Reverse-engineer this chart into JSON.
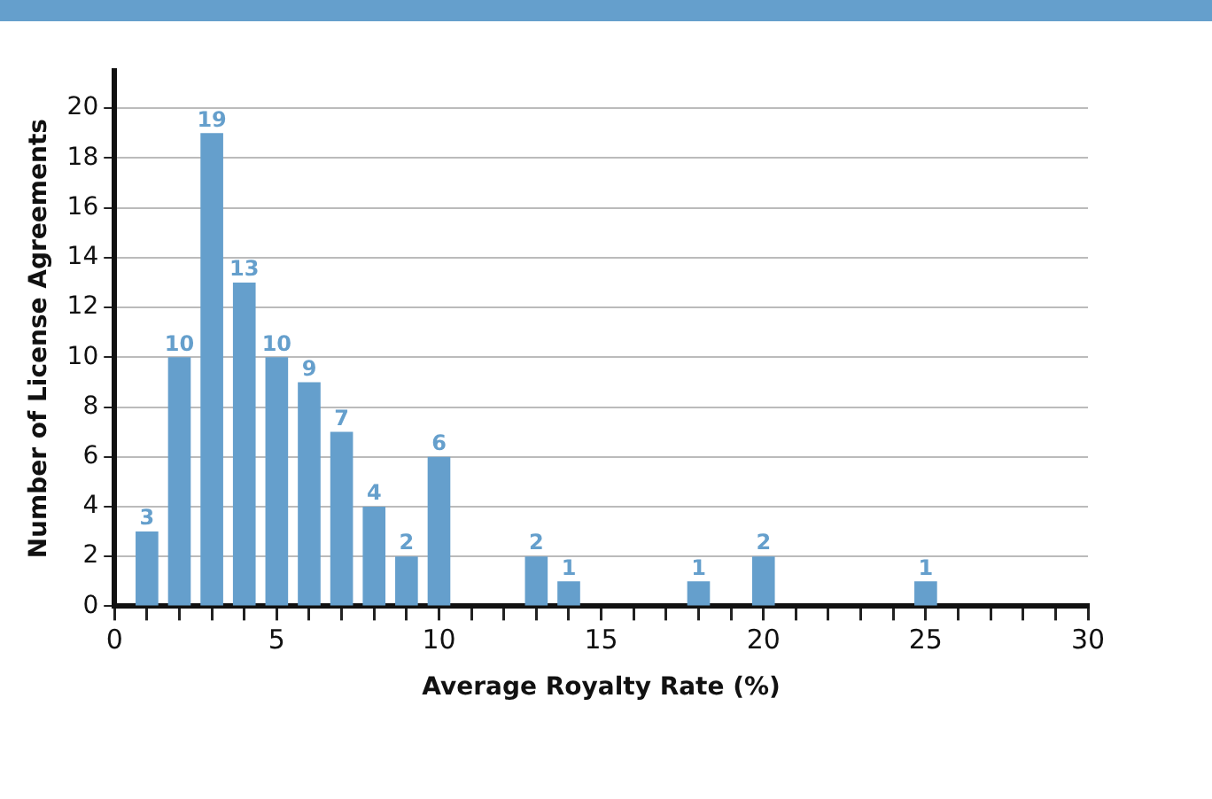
{
  "chart_data": {
    "type": "bar",
    "xlabel": "Average Royalty Rate (%)",
    "ylabel": "Number of License Agreements",
    "x": [
      1,
      2,
      3,
      4,
      5,
      6,
      7,
      8,
      9,
      10,
      13,
      14,
      18,
      20,
      25
    ],
    "values": [
      3,
      10,
      19,
      13,
      10,
      9,
      7,
      4,
      2,
      6,
      2,
      1,
      1,
      2,
      1
    ],
    "color": "#659fcc",
    "xlim": [
      0,
      30
    ],
    "xticks": [
      0,
      {
        "value": 1,
        "label": null
      },
      {
        "value": 2,
        "label": null
      },
      {
        "value": 3,
        "label": null
      },
      {
        "value": 4,
        "label": null
      },
      5,
      {
        "value": 6,
        "label": null
      },
      {
        "value": 7,
        "label": null
      },
      {
        "value": 8,
        "label": null
      },
      {
        "value": 9,
        "label": null
      },
      10,
      {
        "value": 11,
        "label": null
      },
      {
        "value": 12,
        "label": null
      },
      {
        "value": 13,
        "label": null
      },
      {
        "value": 14,
        "label": null
      },
      15,
      {
        "value": 16,
        "label": null
      },
      {
        "value": 17,
        "label": null
      },
      {
        "value": 18,
        "label": null
      },
      {
        "value": 19,
        "label": null
      },
      20,
      {
        "value": 21,
        "label": null
      },
      {
        "value": 22,
        "label": null
      },
      {
        "value": 23,
        "label": null
      },
      {
        "value": 24,
        "label": null
      },
      25,
      {
        "value": 26,
        "label": null
      },
      {
        "value": 27,
        "label": null
      },
      {
        "value": 28,
        "label": null
      },
      {
        "value": 29,
        "label": null
      },
      30
    ],
    "ylim": [
      0,
      21.5
    ],
    "yticks": [
      0,
      2,
      4,
      6,
      8,
      10,
      12,
      14,
      16,
      18,
      20
    ],
    "grid": "y",
    "data_labels": true,
    "legend": false
  }
}
